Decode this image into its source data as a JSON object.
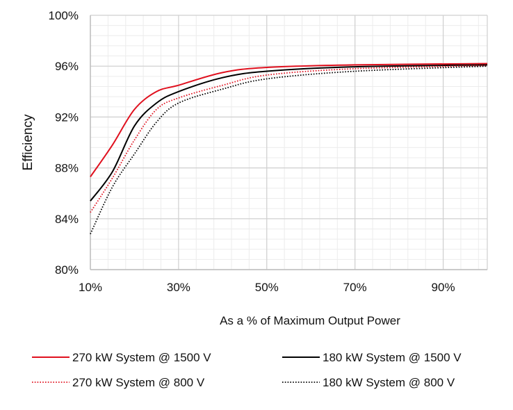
{
  "chart_data": {
    "type": "line",
    "title": "",
    "xlabel": "As a % of Maximum Output Power",
    "ylabel": "Efficiency",
    "xlim": [
      10,
      100
    ],
    "ylim": [
      80,
      100
    ],
    "x_ticks": [
      10,
      30,
      50,
      70,
      90
    ],
    "x_tick_labels": [
      "10%",
      "30%",
      "50%",
      "70%",
      "90%"
    ],
    "y_ticks": [
      80,
      84,
      88,
      92,
      96,
      100
    ],
    "y_tick_labels": [
      "80%",
      "84%",
      "88%",
      "92%",
      "96%",
      "100%"
    ],
    "grid": true,
    "legend_placement": "bottom",
    "x": [
      10,
      15,
      20,
      25,
      30,
      40,
      50,
      70,
      100
    ],
    "series": [
      {
        "name": "270 kW System @ 1500 V",
        "color": "#e0101e",
        "style": "solid",
        "values": [
          87.3,
          89.8,
          92.6,
          94.0,
          94.5,
          95.5,
          95.9,
          96.1,
          96.2
        ]
      },
      {
        "name": "180 kW System @ 1500 V",
        "color": "#000000",
        "style": "solid",
        "values": [
          85.4,
          87.7,
          91.3,
          93.1,
          94.0,
          95.1,
          95.6,
          95.95,
          96.1
        ]
      },
      {
        "name": "270 kW System @ 800 V",
        "color": "#e0101e",
        "style": "dotted",
        "values": [
          84.5,
          87.2,
          90.2,
          92.6,
          93.5,
          94.5,
          95.3,
          95.8,
          96.05
        ]
      },
      {
        "name": "180 kW System @ 800 V",
        "color": "#000000",
        "style": "dotted",
        "values": [
          82.8,
          86.5,
          89.1,
          91.6,
          93.1,
          94.2,
          95.0,
          95.6,
          96.0
        ]
      }
    ]
  }
}
